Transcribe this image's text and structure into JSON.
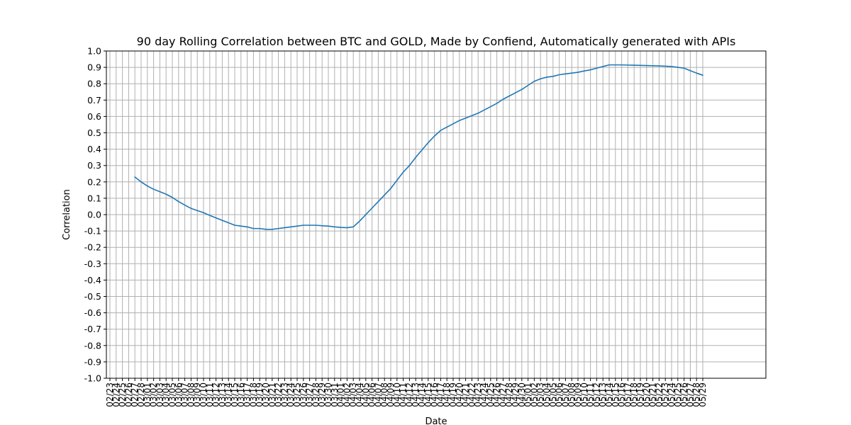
{
  "chart_data": {
    "type": "line",
    "title": "90 day Rolling Correlation between BTC and GOLD, Made by Confiend, Automatically generated with APIs",
    "xlabel": "Date",
    "ylabel": "Correlation",
    "ylim": [
      -1.0,
      1.0
    ],
    "yticks": [
      "-1.0",
      "-0.9",
      "-0.8",
      "-0.7",
      "-0.6",
      "-0.5",
      "-0.4",
      "-0.3",
      "-0.2",
      "-0.1",
      "0.0",
      "0.1",
      "0.2",
      "0.3",
      "0.4",
      "0.5",
      "0.6",
      "0.7",
      "0.8",
      "0.9",
      "1.0"
    ],
    "grid": true,
    "x": [
      "02/23",
      "02/24",
      "02/25",
      "02/26",
      "02/27",
      "02/28",
      "03/01",
      "03/02",
      "03/03",
      "03/04",
      "03/05",
      "03/06",
      "03/07",
      "03/08",
      "03/09",
      "03/10",
      "03/11",
      "03/12",
      "03/13",
      "03/14",
      "03/15",
      "03/16",
      "03/17",
      "03/18",
      "03/19",
      "03/20",
      "03/21",
      "03/22",
      "03/23",
      "03/24",
      "03/25",
      "03/26",
      "03/27",
      "03/28",
      "03/29",
      "03/30",
      "03/31",
      "04/01",
      "04/02",
      "04/03",
      "04/04",
      "04/05",
      "04/06",
      "04/07",
      "04/08",
      "04/09",
      "04/10",
      "04/11",
      "04/12",
      "04/13",
      "04/14",
      "04/15",
      "04/16",
      "04/17",
      "04/18",
      "04/19",
      "04/20",
      "04/21",
      "04/22",
      "04/23",
      "04/24",
      "04/25",
      "04/26",
      "04/27",
      "04/28",
      "04/29",
      "04/30",
      "05/01",
      "05/02",
      "05/03",
      "05/04",
      "05/05",
      "05/06",
      "05/07",
      "05/08",
      "05/09",
      "05/10",
      "05/11",
      "05/12",
      "05/13",
      "05/14",
      "05/15",
      "05/16",
      "05/17",
      "05/18",
      "05/19",
      "05/20",
      "05/21",
      "05/22",
      "05/23",
      "05/24",
      "05/25",
      "05/26",
      "05/27",
      "05/28",
      "05/29"
    ],
    "series": [
      {
        "values": [
          null,
          null,
          null,
          null,
          0.23,
          0.2,
          0.175,
          0.155,
          0.14,
          0.125,
          0.105,
          0.08,
          0.058,
          0.038,
          0.025,
          0.012,
          -0.005,
          -0.02,
          -0.035,
          -0.05,
          -0.065,
          -0.07,
          -0.075,
          -0.085,
          -0.085,
          -0.09,
          -0.09,
          -0.085,
          -0.08,
          -0.075,
          -0.07,
          -0.065,
          -0.065,
          -0.065,
          -0.068,
          -0.07,
          -0.075,
          -0.078,
          -0.08,
          -0.075,
          -0.04,
          0.0,
          0.04,
          0.08,
          0.12,
          0.16,
          0.21,
          0.26,
          0.3,
          0.35,
          0.395,
          0.44,
          0.48,
          0.515,
          0.535,
          0.555,
          0.575,
          0.59,
          0.605,
          0.62,
          0.64,
          0.66,
          0.68,
          0.705,
          0.725,
          0.745,
          0.765,
          0.79,
          0.815,
          0.83,
          0.84,
          0.845,
          0.855,
          0.86,
          0.865,
          0.87,
          0.878,
          0.885,
          0.895,
          0.905,
          0.915,
          0.915,
          0.915,
          0.914,
          0.913,
          0.912,
          0.911,
          0.91,
          0.909,
          0.907,
          0.905,
          0.9,
          0.895,
          0.88,
          0.865,
          0.852
        ]
      }
    ]
  }
}
